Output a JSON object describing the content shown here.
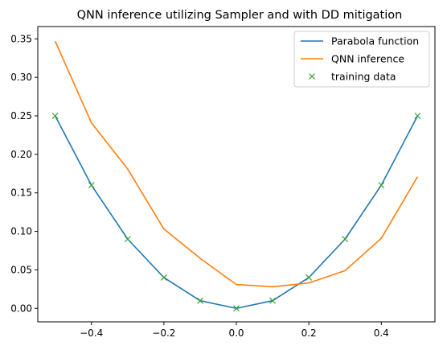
{
  "chart_data": {
    "type": "line",
    "title": "QNN inference utilizing Sampler and with DD mitigation",
    "xlabel": "",
    "ylabel": "",
    "xlim": [
      -0.548,
      0.548
    ],
    "ylim": [
      -0.0175,
      0.366
    ],
    "xticks": [
      -0.4,
      -0.2,
      0.0,
      0.2,
      0.4
    ],
    "xtick_labels": [
      "−0.4",
      "−0.2",
      "0.0",
      "0.2",
      "0.4"
    ],
    "yticks": [
      0.0,
      0.05,
      0.1,
      0.15,
      0.2,
      0.25,
      0.3,
      0.35
    ],
    "ytick_labels": [
      "0.00",
      "0.05",
      "0.10",
      "0.15",
      "0.20",
      "0.25",
      "0.30",
      "0.35"
    ],
    "grid": false,
    "legend_position": "top-right",
    "x": [
      -0.5,
      -0.4,
      -0.3,
      -0.2,
      -0.1,
      0.0,
      0.1,
      0.2,
      0.3,
      0.4,
      0.5
    ],
    "series": [
      {
        "name": "Parabola function",
        "style": "line",
        "color": "#1f77b4",
        "values": [
          0.25,
          0.16,
          0.09,
          0.04,
          0.01,
          0.0,
          0.01,
          0.04,
          0.09,
          0.16,
          0.25
        ]
      },
      {
        "name": "QNN inference",
        "style": "line",
        "color": "#ff7f0e",
        "values": [
          0.347,
          0.241,
          0.181,
          0.103,
          0.065,
          0.031,
          0.028,
          0.033,
          0.049,
          0.091,
          0.171
        ]
      },
      {
        "name": "training data",
        "style": "marker-x",
        "color": "#2ca02c",
        "values": [
          0.25,
          0.16,
          0.09,
          0.04,
          0.01,
          0.0,
          0.01,
          0.04,
          0.09,
          0.16,
          0.25
        ]
      }
    ]
  }
}
